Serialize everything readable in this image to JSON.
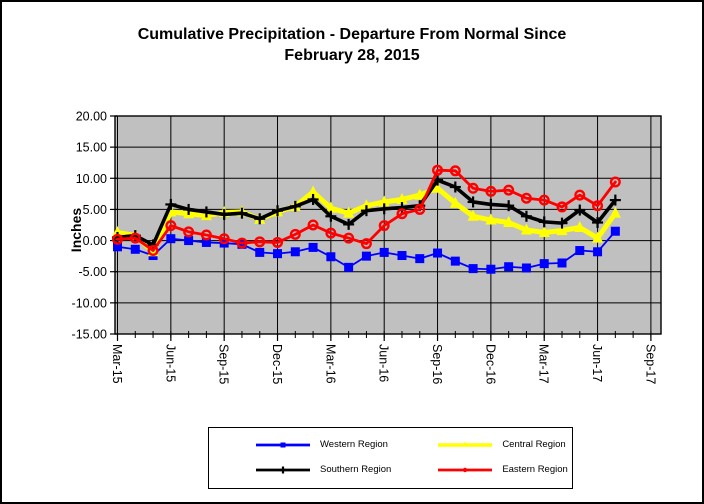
{
  "title": {
    "line1": "Cumulative Precipitation - Departure From Normal Since",
    "line2": "February 28, 2015"
  },
  "y_axis": {
    "title": "Inches",
    "tick_labels": [
      "20.00",
      "15.00",
      "10.00",
      "5.00",
      "0.00",
      "-5.00",
      "-10.00",
      "-15.00"
    ]
  },
  "x_axis": {
    "tick_labels": [
      "Mar-15",
      "Jun-15",
      "Sep-15",
      "Dec-15",
      "Mar-16",
      "Jun-16",
      "Sep-16",
      "Dec-16",
      "Mar-17",
      "Jun-17",
      "Sep-17"
    ]
  },
  "plot": {
    "bg": "#C0C0C0",
    "grid_color": "#000000",
    "page_bg": "#FFFFFF"
  },
  "legend": {
    "entries": [
      {
        "label": "Western Region",
        "color": "#0000FF",
        "marker": "square"
      },
      {
        "label": "Central Region",
        "color": "#FFFF00",
        "marker": "triangle"
      },
      {
        "label": "Southern Region",
        "color": "#000000",
        "marker": "plus"
      },
      {
        "label": "Eastern Region",
        "color": "#FF0000",
        "marker": "circle-open"
      }
    ]
  },
  "chart_data": {
    "type": "line",
    "title": "Cumulative Precipitation - Departure From Normal Since February 28, 2015",
    "xlabel": "",
    "ylabel": "Inches",
    "ylim": [
      -15,
      20
    ],
    "y_step": 5,
    "x_major_every": 3,
    "grid": true,
    "legend_position": "bottom",
    "x": [
      "Mar-15",
      "Apr-15",
      "May-15",
      "Jun-15",
      "Jul-15",
      "Aug-15",
      "Sep-15",
      "Oct-15",
      "Nov-15",
      "Dec-15",
      "Jan-16",
      "Feb-16",
      "Mar-16",
      "Apr-16",
      "May-16",
      "Jun-16",
      "Jul-16",
      "Aug-16",
      "Sep-16",
      "Oct-16",
      "Nov-16",
      "Dec-16",
      "Jan-17",
      "Feb-17",
      "Mar-17",
      "Apr-17",
      "May-17",
      "Jun-17",
      "Jul-17"
    ],
    "series": [
      {
        "name": "Western Region",
        "color": "#0000FF",
        "marker": "square",
        "line_width": 1.8,
        "marker_size": 9,
        "values": [
          -1.0,
          -1.4,
          -2.4,
          0.3,
          0.0,
          -0.3,
          -0.4,
          -0.6,
          -1.9,
          -2.1,
          -1.8,
          -1.1,
          -2.6,
          -4.3,
          -2.5,
          -1.9,
          -2.4,
          -2.9,
          -2.0,
          -3.3,
          -4.5,
          -4.6,
          -4.2,
          -4.4,
          -3.7,
          -3.6,
          -1.6,
          -1.8,
          1.5
        ]
      },
      {
        "name": "Central Region",
        "color": "#FFFF00",
        "marker": "triangle",
        "line_width": 5,
        "marker_size": 11,
        "values": [
          1.3,
          0.8,
          -1.8,
          4.6,
          4.3,
          4.0,
          4.5,
          4.6,
          3.4,
          4.6,
          5.5,
          7.8,
          5.2,
          4.4,
          5.6,
          6.2,
          6.6,
          7.3,
          8.4,
          6.0,
          3.9,
          3.3,
          2.9,
          1.7,
          1.3,
          1.6,
          2.1,
          0.4,
          4.4
        ]
      },
      {
        "name": "Southern Region",
        "color": "#000000",
        "marker": "plus",
        "line_width": 3.6,
        "marker_size": 11,
        "values": [
          0.5,
          0.8,
          -0.7,
          5.8,
          5.0,
          4.6,
          4.2,
          4.4,
          3.5,
          4.8,
          5.5,
          6.6,
          3.9,
          2.6,
          4.8,
          5.1,
          5.3,
          5.6,
          9.7,
          8.6,
          6.2,
          5.8,
          5.6,
          3.9,
          3.0,
          2.8,
          4.9,
          2.9,
          6.5
        ]
      },
      {
        "name": "Eastern Region",
        "color": "#FF0000",
        "marker": "circle-open",
        "line_width": 2.8,
        "marker_size": 9,
        "values": [
          0.2,
          0.4,
          -1.6,
          2.4,
          1.4,
          0.9,
          0.3,
          -0.4,
          -0.2,
          -0.3,
          1.0,
          2.5,
          1.2,
          0.4,
          -0.5,
          2.4,
          4.3,
          5.0,
          11.3,
          11.2,
          8.4,
          7.9,
          8.1,
          6.8,
          6.5,
          5.4,
          7.3,
          5.6,
          9.4
        ]
      }
    ]
  }
}
